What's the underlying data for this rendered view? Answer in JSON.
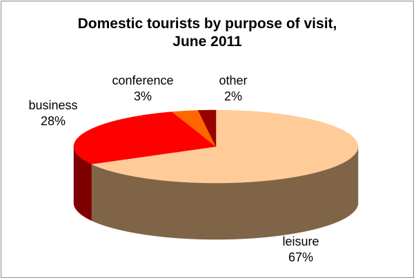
{
  "chart_data": {
    "type": "pie",
    "style": "3d",
    "title": "Domestic tourists by purpose of visit,",
    "title_line2": "June  2011",
    "slices": [
      {
        "label": "leisure",
        "value": 67,
        "value_label": "67%",
        "color": "#FFCC99",
        "side_color": "#806448"
      },
      {
        "label": "business",
        "value": 28,
        "value_label": "28%",
        "color": "#FF0000",
        "side_color": "#7F0000"
      },
      {
        "label": "conference",
        "value": 3,
        "value_label": "3%",
        "color": "#FF6600",
        "side_color": "#803300"
      },
      {
        "label": "other",
        "value": 2,
        "value_label": "2%",
        "color": "#990000",
        "side_color": "#4D0000"
      }
    ],
    "legend": "none",
    "border_color": "#8C8C8C"
  }
}
